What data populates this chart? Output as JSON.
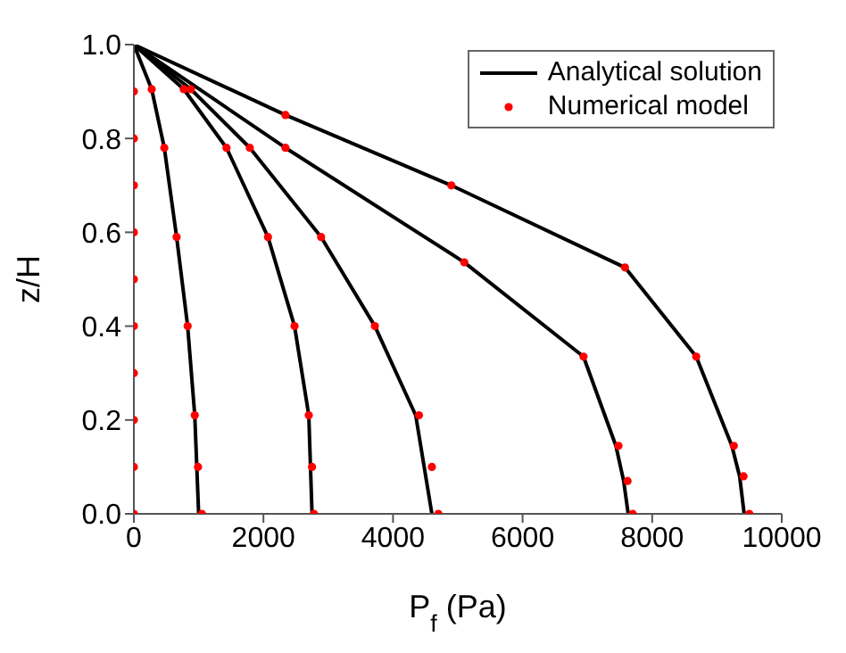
{
  "chart_data": {
    "type": "line",
    "xlabel": "P$_{f}$ (Pa)",
    "ylabel": "z/H",
    "xlim": [
      0,
      10000
    ],
    "xticks": [
      0,
      2000,
      4000,
      6000,
      8000,
      10000
    ],
    "ylim": [
      0,
      1
    ],
    "yticks": [
      {
        "value": 0,
        "label": "0.0"
      },
      {
        "value": 0.2,
        "label": "0.2"
      },
      {
        "value": 0.4,
        "label": "0.4"
      },
      {
        "value": 0.6,
        "label": "0.6"
      },
      {
        "value": 0.8,
        "label": "0.8"
      },
      {
        "value": 1,
        "label": "1.0"
      }
    ],
    "grid": false,
    "legend": "top right",
    "line_style": "solid",
    "series": [
      {
        "name": "Analytical solution",
        "color": "#000000",
        "marker": "none",
        "x": [
          1000,
          940,
          830,
          660,
          470,
          275,
          0
        ],
        "values": [
          0,
          0.21,
          0.4,
          0.59,
          0.78,
          0.905,
          1
        ]
      },
      {
        "color": "#000000",
        "marker": "none",
        "x": [
          2750,
          2700,
          2480,
          2070,
          1430,
          770,
          0
        ],
        "values": [
          0,
          0.21,
          0.4,
          0.59,
          0.78,
          0.905,
          1
        ]
      },
      {
        "color": "#000000",
        "marker": "none",
        "x": [
          4600,
          4350,
          3720,
          2890,
          1790,
          880,
          0
        ],
        "values": [
          0,
          0.21,
          0.4,
          0.59,
          0.78,
          0.905,
          1
        ]
      },
      {
        "color": "#000000",
        "marker": "none",
        "x": [
          7630,
          7560,
          7440,
          6940,
          5100,
          2340,
          0
        ],
        "values": [
          0,
          0.07,
          0.145,
          0.335,
          0.536,
          0.78,
          1
        ]
      },
      {
        "color": "#000000",
        "marker": "none",
        "x": [
          9420,
          9350,
          9230,
          8680,
          7580,
          4900,
          2340,
          0
        ],
        "values": [
          0,
          0.08,
          0.145,
          0.335,
          0.525,
          0.7,
          0.85,
          1
        ]
      },
      {
        "name": "Numerical model",
        "type": "scatter",
        "marker": "circle",
        "color": "#ff0000",
        "x": [
          0,
          0,
          0,
          0,
          0,
          0,
          0,
          0,
          0,
          0
        ],
        "values": [
          0,
          0.1,
          0.2,
          0.3,
          0.4,
          0.5,
          0.6,
          0.7,
          0.8,
          0.9
        ]
      },
      {
        "type": "scatter",
        "marker": "circle",
        "color": "#ff0000",
        "x": [
          1050,
          990,
          940,
          830,
          660,
          470,
          275
        ],
        "values": [
          0,
          0.1,
          0.21,
          0.4,
          0.59,
          0.78,
          0.905
        ]
      },
      {
        "type": "scatter",
        "marker": "circle",
        "color": "#ff0000",
        "x": [
          2780,
          2750,
          2700,
          2480,
          2070,
          1430,
          770
        ],
        "values": [
          0,
          0.1,
          0.21,
          0.4,
          0.59,
          0.78,
          0.905
        ]
      },
      {
        "type": "scatter",
        "marker": "circle",
        "color": "#ff0000",
        "x": [
          4700,
          4600,
          4400,
          3720,
          2890,
          1790,
          880
        ],
        "values": [
          0,
          0.1,
          0.21,
          0.4,
          0.59,
          0.78,
          0.905
        ]
      },
      {
        "type": "scatter",
        "marker": "circle",
        "color": "#ff0000",
        "x": [
          7700,
          7620,
          7480,
          6940,
          5100,
          2340
        ],
        "values": [
          0,
          0.07,
          0.145,
          0.335,
          0.536,
          0.78
        ]
      },
      {
        "type": "scatter",
        "marker": "circle",
        "color": "#ff0000",
        "x": [
          9500,
          9410,
          9260,
          8680,
          7580,
          4900,
          2340
        ],
        "values": [
          0,
          0.08,
          0.145,
          0.335,
          0.525,
          0.7,
          0.85
        ]
      }
    ]
  }
}
